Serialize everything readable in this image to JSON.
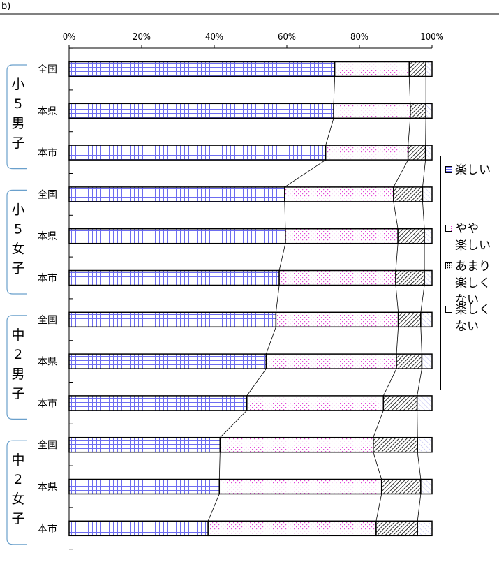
{
  "page_mark": "b)",
  "colors": {
    "enjoy": "#6d6df0",
    "somewhat": "#e34ad8",
    "not_much": "#000000",
    "not": "#a9a9f0",
    "frame": "#000000"
  },
  "legend": [
    {
      "line1": "楽しい",
      "line2": "",
      "key": "enjoy"
    },
    {
      "line1": "やや",
      "line2": "楽しい",
      "key": "somewhat"
    },
    {
      "line1": "あまり",
      "line2": "楽しく\nない",
      "key": "not_much"
    },
    {
      "line1": "楽しく",
      "line2": "ない",
      "key": "not"
    }
  ],
  "chart_data": {
    "type": "bar",
    "orientation": "horizontal",
    "stacked": true,
    "percent": true,
    "xlim": [
      0,
      100
    ],
    "x_ticks": [
      "0%",
      "20%",
      "40%",
      "60%",
      "80%",
      "100%"
    ],
    "groups": [
      {
        "label": "小５男子",
        "chars": [
          "小",
          "5",
          "男",
          "子"
        ],
        "rows": [
          0,
          1,
          2
        ]
      },
      {
        "label": "小５女子",
        "chars": [
          "小",
          "5",
          "女",
          "子"
        ],
        "rows": [
          3,
          4,
          5
        ]
      },
      {
        "label": "中２男子",
        "chars": [
          "中",
          "2",
          "男",
          "子"
        ],
        "rows": [
          6,
          7,
          8
        ]
      },
      {
        "label": "中２女子",
        "chars": [
          "中",
          "2",
          "女",
          "子"
        ],
        "rows": [
          9,
          10,
          11
        ]
      }
    ],
    "categories": [
      "全国",
      "本県",
      "本市",
      "全国",
      "本県",
      "本市",
      "全国",
      "本県",
      "本市",
      "全国",
      "本県",
      "本市"
    ],
    "series": [
      {
        "name": "楽しい",
        "values": [
          73.2,
          72.9,
          70.7,
          59.4,
          59.6,
          57.9,
          57.0,
          54.3,
          49.0,
          41.6,
          41.4,
          38.3
        ]
      },
      {
        "name": "やや楽しい",
        "values": [
          20.5,
          21.1,
          22.7,
          30.0,
          31.0,
          32.1,
          33.7,
          35.9,
          37.6,
          42.2,
          44.7,
          46.3
        ]
      },
      {
        "name": "あまり楽しくない",
        "values": [
          4.6,
          4.3,
          4.8,
          8.0,
          7.3,
          7.9,
          6.2,
          7.0,
          9.3,
          12.2,
          10.8,
          11.4
        ]
      },
      {
        "name": "楽しくない",
        "values": [
          1.7,
          1.7,
          1.8,
          2.6,
          2.1,
          2.1,
          3.1,
          2.8,
          4.1,
          4.0,
          3.1,
          4.0
        ]
      }
    ]
  }
}
